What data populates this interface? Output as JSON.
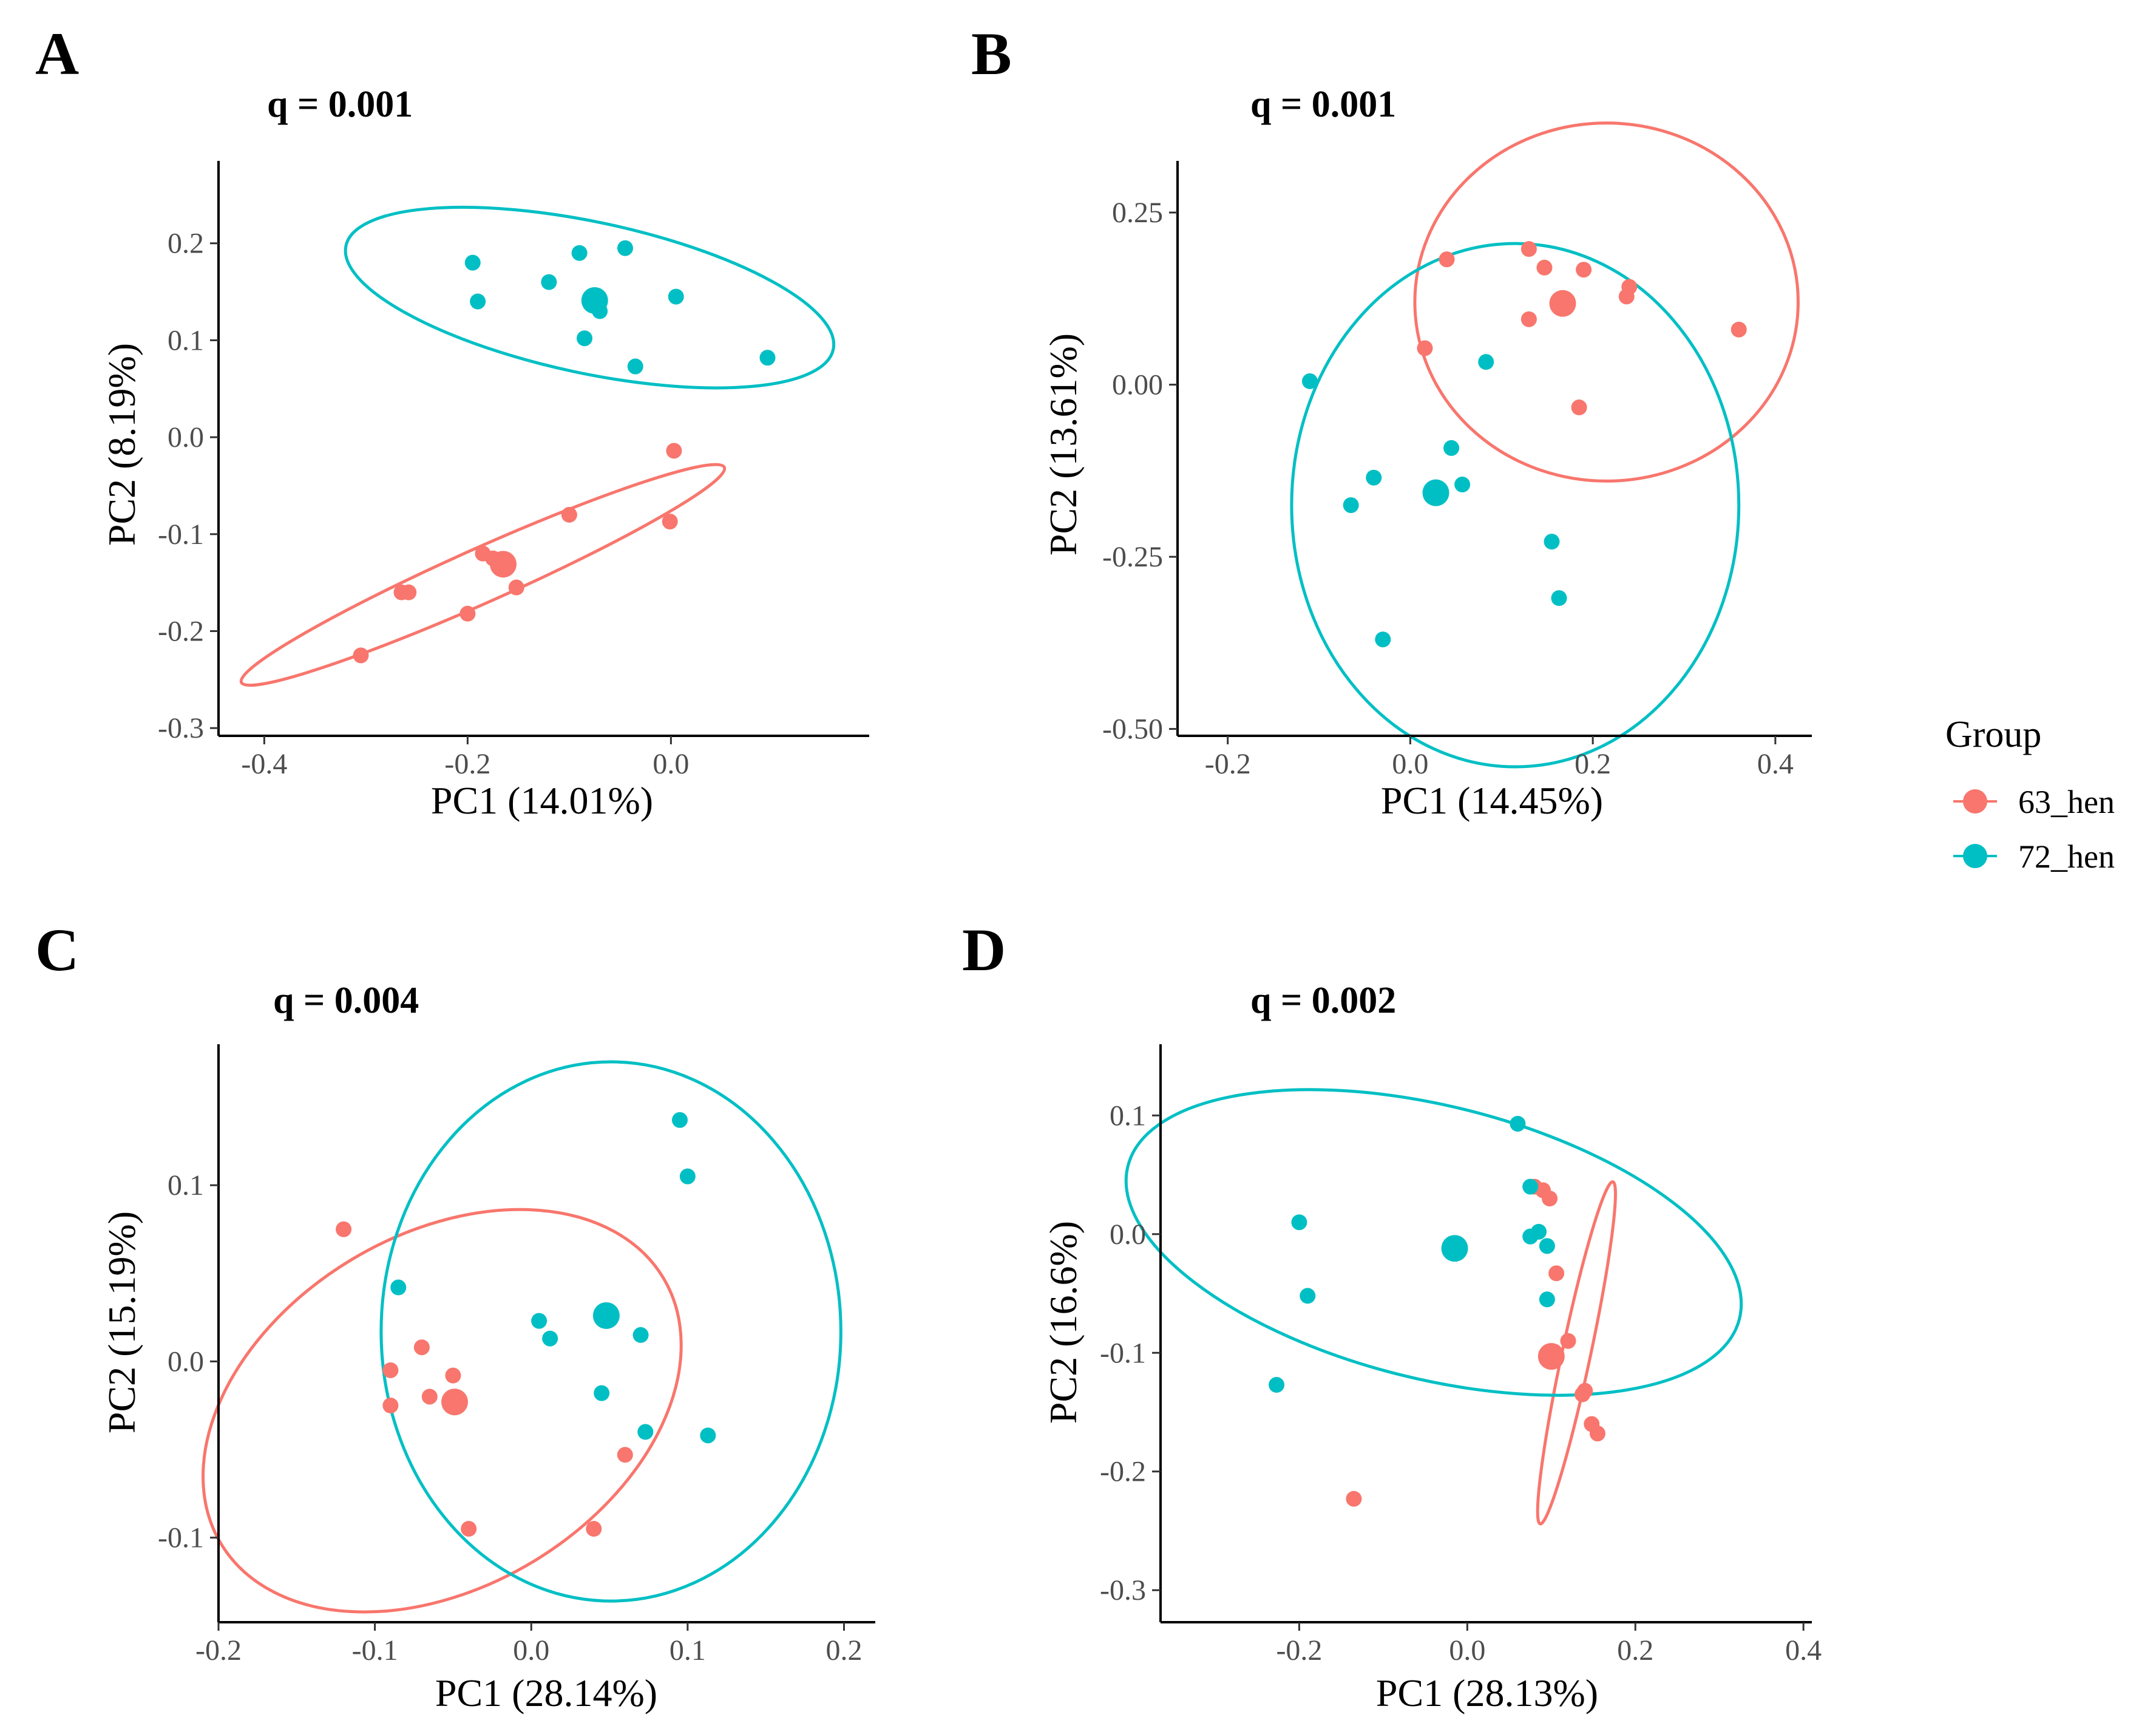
{
  "colors": {
    "63_hen": "#F8766D",
    "72_hen": "#00BFC4",
    "axis": "#000000",
    "tick": "#4d4d4d"
  },
  "legend": {
    "title": "Group",
    "items": [
      {
        "label": "63_hen",
        "group": "63_hen"
      },
      {
        "label": "72_hen",
        "group": "72_hen"
      }
    ]
  },
  "chart_data": [
    {
      "panel": "A",
      "type": "scatter",
      "title": "q = 0.001",
      "xlabel": "PC1 (14.01%)",
      "ylabel": "PC2 (8.19%)",
      "xlim": [
        -0.445,
        0.195
      ],
      "ylim": [
        -0.308,
        0.285
      ],
      "xticks": [
        -0.4,
        -0.2,
        0.0
      ],
      "xtick_labels": [
        "-0.4",
        "-0.2",
        "0.0"
      ],
      "yticks": [
        0.2,
        0.1,
        0.0,
        -0.1,
        -0.2,
        -0.3
      ],
      "ytick_labels": [
        "0.2",
        "0.1",
        "0.0",
        "-0.1",
        "-0.2",
        "-0.3"
      ],
      "series": [
        {
          "name": "63_hen",
          "points": [
            [
              0.003,
              -0.014
            ],
            [
              -0.001,
              -0.087
            ],
            [
              -0.1,
              -0.08
            ],
            [
              -0.165,
              -0.13
            ],
            [
              -0.185,
              -0.12
            ],
            [
              -0.152,
              -0.155
            ],
            [
              -0.2,
              -0.182
            ],
            [
              -0.265,
              -0.16
            ],
            [
              -0.258,
              -0.16
            ],
            [
              -0.305,
              -0.225
            ],
            [
              -0.175,
              -0.125
            ]
          ],
          "centroid": [
            -0.165,
            -0.131
          ],
          "ellipse": {
            "cx": -0.185,
            "cy": -0.142,
            "rx": 0.26,
            "ry": 0.028,
            "angle_deg": 24
          }
        },
        {
          "name": "72_hen",
          "points": [
            [
              -0.195,
              0.18
            ],
            [
              -0.19,
              0.14
            ],
            [
              -0.09,
              0.19
            ],
            [
              -0.045,
              0.195
            ],
            [
              -0.12,
              0.16
            ],
            [
              -0.085,
              0.102
            ],
            [
              0.005,
              0.145
            ],
            [
              -0.035,
              0.073
            ],
            [
              0.095,
              0.082
            ],
            [
              -0.07,
              0.13
            ]
          ],
          "centroid": [
            -0.075,
            0.141
          ],
          "ellipse": {
            "cx": -0.08,
            "cy": 0.144,
            "rx": 0.245,
            "ry": 0.078,
            "angle_deg": -12
          }
        }
      ]
    },
    {
      "panel": "B",
      "type": "scatter",
      "title": "q = 0.001",
      "xlabel": "PC1 (14.45%)",
      "ylabel": "PC2 (13.61%)",
      "xlim": [
        -0.255,
        0.44
      ],
      "ylim": [
        -0.51,
        0.325
      ],
      "xticks": [
        -0.2,
        0.0,
        0.2,
        0.4
      ],
      "xtick_labels": [
        "-0.2",
        "0.0",
        "0.2",
        "0.4"
      ],
      "yticks": [
        0.25,
        0.0,
        -0.25,
        -0.5
      ],
      "ytick_labels": [
        "0.25",
        "0.00",
        "-0.25",
        "-0.50"
      ],
      "series": [
        {
          "name": "63_hen",
          "points": [
            [
              0.04,
              0.182
            ],
            [
              0.13,
              0.197
            ],
            [
              0.147,
              0.17
            ],
            [
              0.19,
              0.167
            ],
            [
              0.24,
              0.142
            ],
            [
              0.237,
              0.128
            ],
            [
              0.36,
              0.08
            ],
            [
              0.016,
              0.053
            ],
            [
              0.13,
              0.095
            ],
            [
              0.185,
              -0.033
            ],
            [
              0.165,
              0.12
            ]
          ],
          "centroid": [
            0.167,
            0.118
          ],
          "ellipse": {
            "cx": 0.215,
            "cy": 0.12,
            "rx": 0.21,
            "ry": 0.26,
            "angle_deg": 0
          }
        },
        {
          "name": "72_hen",
          "points": [
            [
              -0.11,
              0.005
            ],
            [
              0.083,
              0.033
            ],
            [
              0.045,
              -0.092
            ],
            [
              -0.04,
              -0.135
            ],
            [
              0.057,
              -0.145
            ],
            [
              -0.065,
              -0.175
            ],
            [
              0.155,
              -0.228
            ],
            [
              0.163,
              -0.31
            ],
            [
              -0.03,
              -0.37
            ]
          ],
          "centroid": [
            0.028,
            -0.157
          ],
          "ellipse": {
            "cx": 0.115,
            "cy": -0.175,
            "rx": 0.245,
            "ry": 0.38,
            "angle_deg": 0
          }
        }
      ]
    },
    {
      "panel": "C",
      "type": "scatter",
      "title": "q = 0.004",
      "xlabel": "PC1 (28.14%)",
      "ylabel": "PC2 (15.19%)",
      "xlim": [
        -0.2,
        0.22
      ],
      "ylim": [
        -0.148,
        0.18
      ],
      "xticks": [
        -0.2,
        -0.1,
        0.0,
        0.1,
        0.2
      ],
      "xtick_labels": [
        "-0.2",
        "-0.1",
        "0.0",
        "0.1",
        "0.2"
      ],
      "yticks": [
        0.1,
        0.0,
        -0.1
      ],
      "ytick_labels": [
        "0.1",
        "0.0",
        "-0.1"
      ],
      "series": [
        {
          "name": "63_hen",
          "points": [
            [
              -0.12,
              0.075
            ],
            [
              -0.07,
              0.008
            ],
            [
              -0.09,
              -0.005
            ],
            [
              -0.05,
              -0.008
            ],
            [
              -0.065,
              -0.02
            ],
            [
              -0.09,
              -0.025
            ],
            [
              -0.04,
              -0.095
            ],
            [
              0.06,
              -0.053
            ],
            [
              0.04,
              -0.095
            ]
          ],
          "centroid": [
            -0.049,
            -0.023
          ],
          "ellipse": {
            "cx": -0.057,
            "cy": -0.028,
            "rx": 0.165,
            "ry": 0.1,
            "angle_deg": 31
          }
        },
        {
          "name": "72_hen",
          "points": [
            [
              0.095,
              0.137
            ],
            [
              0.1,
              0.105
            ],
            [
              -0.085,
              0.042
            ],
            [
              0.005,
              0.023
            ],
            [
              0.012,
              0.013
            ],
            [
              0.07,
              0.015
            ],
            [
              0.045,
              -0.018
            ],
            [
              0.073,
              -0.04
            ],
            [
              0.113,
              -0.042
            ]
          ],
          "centroid": [
            0.048,
            0.026
          ],
          "ellipse": {
            "cx": 0.051,
            "cy": 0.017,
            "rx": 0.147,
            "ry": 0.153,
            "angle_deg": 0
          }
        }
      ]
    },
    {
      "panel": "D",
      "type": "scatter",
      "title": "q = 0.002",
      "xlabel": "PC1 (28.13%)",
      "ylabel": "PC2 (16.6%)",
      "xlim": [
        -0.365,
        0.41
      ],
      "ylim": [
        -0.327,
        0.16
      ],
      "xticks": [
        -0.2,
        0.0,
        0.2,
        0.4
      ],
      "xtick_labels": [
        "-0.2",
        "0.0",
        "0.2",
        "0.4"
      ],
      "yticks": [
        0.1,
        0.0,
        -0.1,
        -0.2,
        -0.3
      ],
      "ytick_labels": [
        "0.1",
        "0.0",
        "-0.1",
        "-0.2",
        "-0.3"
      ],
      "series": [
        {
          "name": "63_hen",
          "points": [
            [
              0.08,
              0.04
            ],
            [
              0.09,
              0.037
            ],
            [
              0.098,
              0.03
            ],
            [
              0.106,
              -0.033
            ],
            [
              0.12,
              -0.09
            ],
            [
              0.14,
              -0.132
            ],
            [
              0.137,
              -0.135
            ],
            [
              0.148,
              -0.16
            ],
            [
              0.155,
              -0.168
            ],
            [
              -0.135,
              -0.223
            ]
          ],
          "centroid": [
            0.1,
            -0.103
          ],
          "ellipse": {
            "cx": 0.13,
            "cy": -0.1,
            "rx": 0.208,
            "ry": 0.012,
            "angle_deg": 78
          }
        },
        {
          "name": "72_hen",
          "points": [
            [
              0.06,
              0.093
            ],
            [
              0.075,
              0.04
            ],
            [
              0.085,
              0.002
            ],
            [
              0.075,
              -0.002
            ],
            [
              0.095,
              -0.01
            ],
            [
              0.095,
              -0.055
            ],
            [
              -0.2,
              0.01
            ],
            [
              -0.19,
              -0.052
            ],
            [
              -0.227,
              -0.127
            ]
          ],
          "centroid": [
            -0.015,
            -0.012
          ],
          "ellipse": {
            "cx": -0.04,
            "cy": -0.007,
            "rx": 0.375,
            "ry": 0.115,
            "angle_deg": -14
          }
        }
      ]
    }
  ]
}
